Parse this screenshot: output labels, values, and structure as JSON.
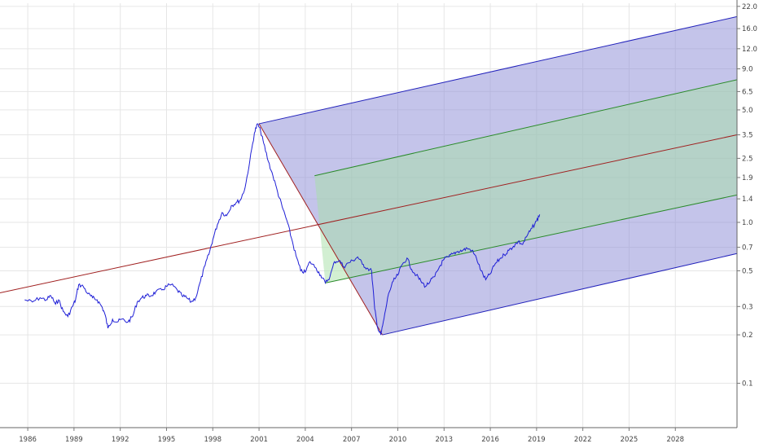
{
  "chart_data": {
    "type": "line",
    "scale_y": "log",
    "grid": true,
    "x_ticks": [
      1986,
      1989,
      1992,
      1995,
      1998,
      2001,
      2004,
      2007,
      2010,
      2013,
      2016,
      2019,
      2022,
      2025,
      2028
    ],
    "x_tick_labels": [
      "1986",
      "1989",
      "1992",
      "1995",
      "1998",
      "2001",
      "2004",
      "2007",
      "2010",
      "2013",
      "2016",
      "2019",
      "2022",
      "2025",
      "2028"
    ],
    "y_ticks": [
      0.1,
      0.2,
      0.3,
      0.5,
      0.7,
      1.0,
      1.4,
      1.9,
      2.5,
      3.5,
      5.0,
      6.5,
      9.0,
      12.0,
      16.0,
      22.0
    ],
    "y_tick_labels": [
      "0.1",
      "0.2",
      "0.3",
      "0.5",
      "0.7",
      "1.0",
      "1.4",
      "1.9",
      "2.5",
      "3.5",
      "5.0",
      "6.5",
      "9.0",
      "12.0",
      "16.0",
      "22.0"
    ],
    "xlim": [
      1984.2,
      2032.0
    ],
    "ylim": [
      0.053,
      23.0
    ],
    "series": [
      {
        "color": "#1f1fd6",
        "x": [
          1985.8,
          1986.3,
          1986.8,
          1987.2,
          1987.5,
          1987.8,
          1988.0,
          1988.3,
          1988.6,
          1988.9,
          1989.1,
          1989.3,
          1989.6,
          1989.9,
          1990.2,
          1990.5,
          1990.8,
          1991.0,
          1991.2,
          1991.5,
          1991.8,
          1992.1,
          1992.5,
          1992.8,
          1993.1,
          1993.4,
          1993.7,
          1994.0,
          1994.3,
          1994.7,
          1995.0,
          1995.3,
          1995.7,
          1996.0,
          1996.3,
          1996.6,
          1996.9,
          1997.2,
          1997.5,
          1997.8,
          1998.0,
          1998.3,
          1998.6,
          1998.9,
          1999.2,
          1999.5,
          1999.8,
          2000.1,
          2000.4,
          2000.7,
          2000.9,
          2001.1,
          2001.3,
          2001.6,
          2001.9,
          2002.2,
          2002.5,
          2002.8,
          2003.1,
          2003.4,
          2003.7,
          2004.0,
          2004.3,
          2004.7,
          2005.0,
          2005.3,
          2005.6,
          2005.9,
          2006.2,
          2006.5,
          2006.8,
          2007.1,
          2007.4,
          2007.7,
          2008.0,
          2008.3,
          2008.5,
          2008.7,
          2008.9,
          2009.1,
          2009.4,
          2009.7,
          2010.0,
          2010.3,
          2010.6,
          2010.9,
          2011.2,
          2011.5,
          2011.8,
          2012.1,
          2012.4,
          2012.7,
          2013.0,
          2013.3,
          2013.6,
          2013.9,
          2014.2,
          2014.5,
          2014.8,
          2015.1,
          2015.4,
          2015.7,
          2016.0,
          2016.3,
          2016.6,
          2016.9,
          2017.2,
          2017.5,
          2017.8,
          2018.1,
          2018.4,
          2018.7,
          2019.0,
          2019.2
        ],
        "y": [
          0.33,
          0.32,
          0.34,
          0.33,
          0.35,
          0.31,
          0.33,
          0.28,
          0.26,
          0.3,
          0.33,
          0.41,
          0.4,
          0.36,
          0.34,
          0.33,
          0.3,
          0.27,
          0.22,
          0.25,
          0.24,
          0.25,
          0.24,
          0.26,
          0.32,
          0.34,
          0.35,
          0.35,
          0.37,
          0.38,
          0.4,
          0.41,
          0.38,
          0.35,
          0.34,
          0.32,
          0.34,
          0.43,
          0.54,
          0.66,
          0.78,
          0.97,
          1.15,
          1.1,
          1.27,
          1.32,
          1.38,
          1.65,
          2.4,
          3.6,
          4.1,
          3.7,
          3.1,
          2.4,
          1.95,
          1.55,
          1.25,
          1.03,
          0.8,
          0.62,
          0.5,
          0.49,
          0.57,
          0.52,
          0.47,
          0.42,
          0.46,
          0.57,
          0.58,
          0.53,
          0.56,
          0.58,
          0.61,
          0.55,
          0.52,
          0.5,
          0.29,
          0.22,
          0.2,
          0.25,
          0.36,
          0.43,
          0.47,
          0.55,
          0.6,
          0.51,
          0.47,
          0.43,
          0.4,
          0.43,
          0.46,
          0.53,
          0.59,
          0.61,
          0.64,
          0.66,
          0.67,
          0.69,
          0.67,
          0.6,
          0.5,
          0.44,
          0.48,
          0.55,
          0.59,
          0.63,
          0.67,
          0.71,
          0.76,
          0.73,
          0.83,
          0.92,
          1.02,
          1.12
        ]
      }
    ],
    "annotations": [
      {
        "type": "line",
        "color": "#a02020",
        "from": [
          1984.2,
          0.365
        ],
        "to": [
          2032.0,
          3.5
        ]
      },
      {
        "type": "line",
        "color": "#a02020",
        "from": [
          2001.0,
          4.1
        ],
        "to": [
          2009.0,
          0.2
        ]
      },
      {
        "type": "band",
        "color": "#8a8ad6",
        "from": [
          2001.0,
          4.1
        ],
        "to": [
          2032.0,
          19.0
        ],
        "lower_from": [
          2009.0,
          0.2
        ],
        "lower_to": [
          2032.0,
          0.64
        ]
      },
      {
        "type": "band",
        "color": "#a6e0a6",
        "from": [
          2004.6,
          1.95
        ],
        "to": [
          2032.0,
          7.7
        ],
        "lower_from": [
          2005.3,
          0.42
        ],
        "lower_to": [
          2032.0,
          1.48
        ]
      },
      {
        "type": "line",
        "color": "#2a8a2a",
        "from": [
          2004.6,
          1.95
        ],
        "to": [
          2032.0,
          7.7
        ]
      },
      {
        "type": "line",
        "color": "#2a8a2a",
        "from": [
          2005.3,
          0.42
        ],
        "to": [
          2032.0,
          1.48
        ]
      },
      {
        "type": "line",
        "color": "#2222bb",
        "from": [
          2001.0,
          4.1
        ],
        "to": [
          2032.0,
          19.0
        ]
      },
      {
        "type": "line",
        "color": "#2222bb",
        "from": [
          2009.0,
          0.2
        ],
        "to": [
          2032.0,
          0.64
        ]
      }
    ]
  }
}
